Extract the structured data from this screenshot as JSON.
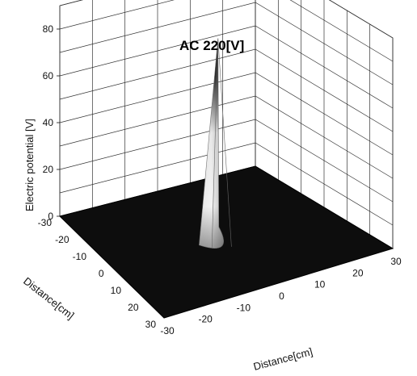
{
  "chart_data": {
    "type": "surface",
    "title": "AC 220[V]",
    "zlabel": "Electric potential [V]",
    "xlabel": "Distance[cm]",
    "ylabel": "Distance[cm]",
    "zlim": [
      0,
      90
    ],
    "z_ticks": [
      0,
      20,
      40,
      60,
      80
    ],
    "xlim": [
      -30,
      30
    ],
    "ylim": [
      -30,
      30
    ],
    "x_ticks": [
      -30,
      -20,
      -10,
      0,
      10,
      20,
      30
    ],
    "y_ticks": [
      -30,
      -20,
      -10,
      0,
      10,
      20,
      30
    ],
    "grid": true,
    "surface": {
      "baseline_potential": 0,
      "peak": {
        "x": 0,
        "y": 0,
        "value": 85
      },
      "peak_base_radius_cm": 6
    },
    "colors": {
      "plane": "#0d0d0d",
      "grid": "#222222",
      "cone_light": "#ffffff",
      "cone_dark": "#0a0a0a"
    }
  }
}
